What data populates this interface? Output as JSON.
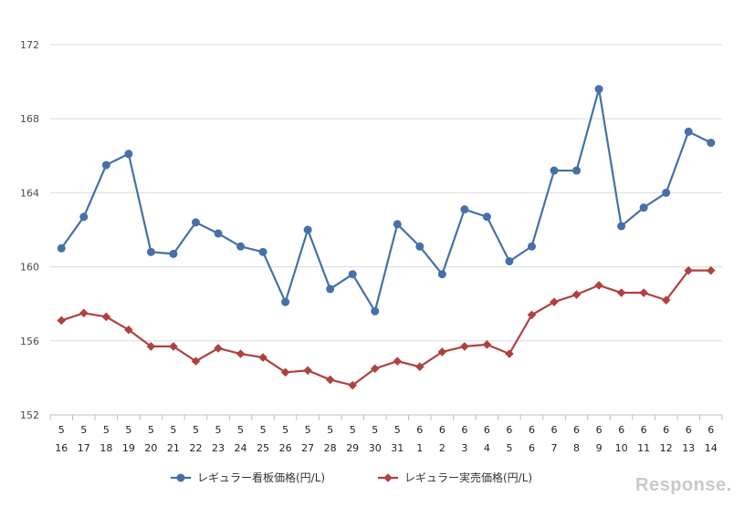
{
  "chart_data": {
    "type": "line",
    "title": "",
    "xlabel": "",
    "ylabel": "",
    "ylim": [
      152,
      172
    ],
    "yticks": [
      152,
      156,
      160,
      164,
      168,
      172
    ],
    "categories": [
      {
        "month": "5",
        "day": "16"
      },
      {
        "month": "5",
        "day": "17"
      },
      {
        "month": "5",
        "day": "18"
      },
      {
        "month": "5",
        "day": "19"
      },
      {
        "month": "5",
        "day": "20"
      },
      {
        "month": "5",
        "day": "21"
      },
      {
        "month": "5",
        "day": "22"
      },
      {
        "month": "5",
        "day": "23"
      },
      {
        "month": "5",
        "day": "24"
      },
      {
        "month": "5",
        "day": "25"
      },
      {
        "month": "5",
        "day": "26"
      },
      {
        "month": "5",
        "day": "27"
      },
      {
        "month": "5",
        "day": "28"
      },
      {
        "month": "5",
        "day": "29"
      },
      {
        "month": "5",
        "day": "30"
      },
      {
        "month": "5",
        "day": "31"
      },
      {
        "month": "6",
        "day": "1"
      },
      {
        "month": "6",
        "day": "2"
      },
      {
        "month": "6",
        "day": "3"
      },
      {
        "month": "6",
        "day": "4"
      },
      {
        "month": "6",
        "day": "5"
      },
      {
        "month": "6",
        "day": "6"
      },
      {
        "month": "6",
        "day": "7"
      },
      {
        "month": "6",
        "day": "8"
      },
      {
        "month": "6",
        "day": "9"
      },
      {
        "month": "6",
        "day": "10"
      },
      {
        "month": "6",
        "day": "11"
      },
      {
        "month": "6",
        "day": "12"
      },
      {
        "month": "6",
        "day": "13"
      },
      {
        "month": "6",
        "day": "14"
      }
    ],
    "series": [
      {
        "name": "レギュラー看板価格(円/L)",
        "color": "#4670a8",
        "marker": "circle",
        "values": [
          161.0,
          162.7,
          165.5,
          166.1,
          160.8,
          160.7,
          162.4,
          161.8,
          161.1,
          160.8,
          158.1,
          162.0,
          158.8,
          159.6,
          157.6,
          162.3,
          161.1,
          159.6,
          163.1,
          162.7,
          160.3,
          161.1,
          165.2,
          165.2,
          169.6,
          162.2,
          163.2,
          164.0,
          167.3,
          166.7
        ]
      },
      {
        "name": "レギュラー実売価格(円/L)",
        "color": "#b0413e",
        "marker": "diamond",
        "values": [
          157.1,
          157.5,
          157.3,
          156.6,
          155.7,
          155.7,
          154.9,
          155.6,
          155.3,
          155.1,
          154.3,
          154.4,
          153.9,
          153.6,
          154.5,
          154.9,
          154.6,
          155.4,
          155.7,
          155.8,
          155.3,
          157.4,
          158.1,
          158.5,
          159.0,
          158.6,
          158.6,
          158.2,
          159.8,
          159.8
        ]
      }
    ],
    "legend": "bottom-center",
    "grid": true
  },
  "watermark": "Response."
}
